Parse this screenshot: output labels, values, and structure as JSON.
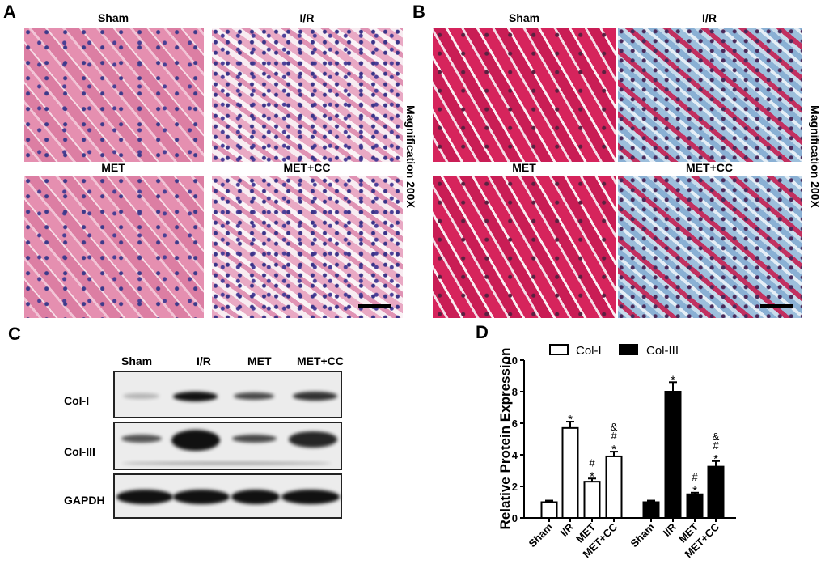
{
  "panel_a": {
    "label": "A",
    "titles": [
      "Sham",
      "I/R",
      "MET",
      "MET+CC"
    ],
    "magnification": "Magnification 200X"
  },
  "panel_b": {
    "label": "B",
    "titles": [
      "Sham",
      "I/R",
      "MET",
      "MET+CC"
    ],
    "magnification": "Magnification 200X"
  },
  "panel_c": {
    "label": "C",
    "lanes": [
      "Sham",
      "I/R",
      "MET",
      "MET+CC"
    ],
    "rows": [
      "Col-I",
      "Col-III",
      "GAPDH"
    ]
  },
  "panel_d": {
    "label": "D"
  },
  "chart_data": {
    "type": "bar",
    "ylabel": "Relative Protein Expression",
    "ylim": [
      0,
      10
    ],
    "yticks": [
      0,
      2,
      4,
      6,
      8,
      10
    ],
    "categories": [
      "Sham",
      "I/R",
      "MET",
      "MET+CC"
    ],
    "legend_placement": "top",
    "series": [
      {
        "name": "Col-I",
        "fill": "#ffffff",
        "values": [
          1.0,
          5.7,
          2.3,
          3.9
        ],
        "errors": [
          0.1,
          0.4,
          0.2,
          0.3
        ],
        "annotations": [
          "",
          "*",
          "*\n#",
          "*\n#\n&"
        ]
      },
      {
        "name": "Col-III",
        "fill": "#000000",
        "values": [
          1.0,
          8.0,
          1.5,
          3.25
        ],
        "errors": [
          0.1,
          0.6,
          0.1,
          0.35
        ],
        "annotations": [
          "",
          "*",
          "*\n#",
          "*\n#\n&"
        ]
      }
    ]
  }
}
